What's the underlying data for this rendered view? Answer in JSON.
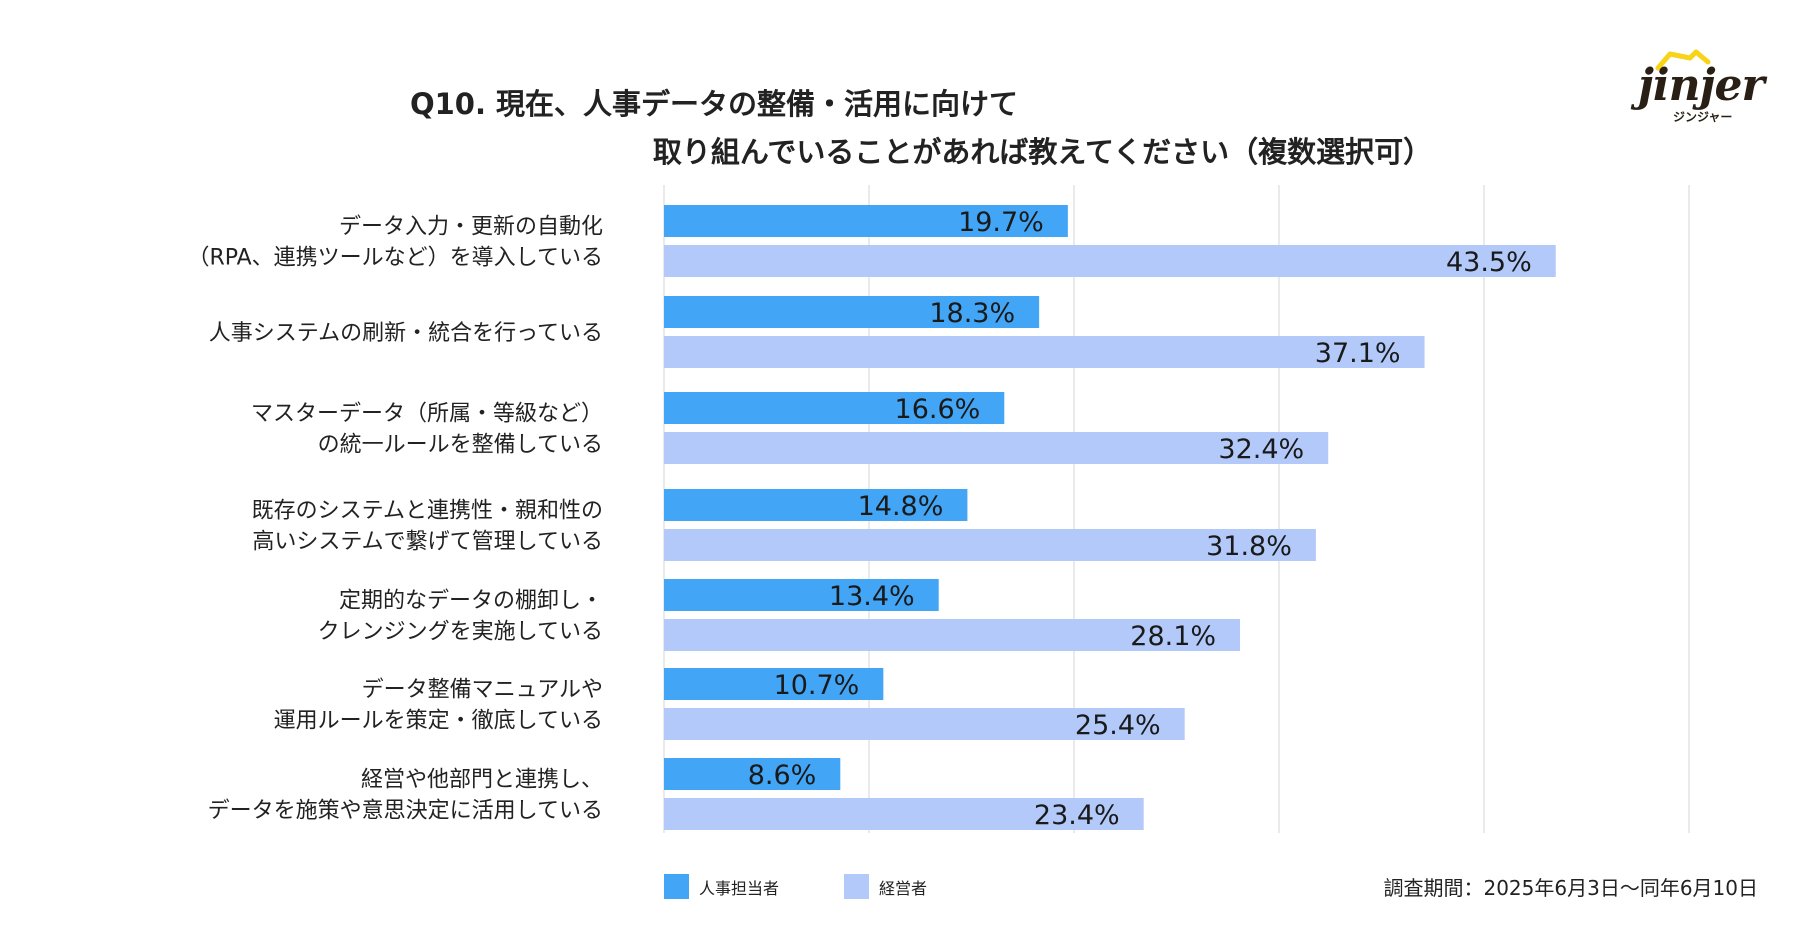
{
  "title_line1": "Q10. 現在、人事データの整備・活用に向けて",
  "title_line2": "取り組んでいることがあれば教えてください（複数選択可）",
  "logo": {
    "wordmark": "jinjer",
    "kana": "ジンジャー"
  },
  "period": "調査期間：2025年6月3日〜同年6月10日",
  "chart_data": {
    "type": "bar",
    "orientation": "horizontal",
    "categories": [
      [
        "データ入力・更新の自動化",
        "（RPA、連携ツールなど）を導入している"
      ],
      [
        "人事システムの刷新・統合を行っている"
      ],
      [
        "マスターデータ（所属・等級など）",
        "の統一ルールを整備している"
      ],
      [
        "既存のシステムと連携性・親和性の",
        "高いシステムで繋げて管理している"
      ],
      [
        "定期的なデータの棚卸し・",
        "クレンジングを実施している"
      ],
      [
        "データ整備マニュアルや",
        "運用ルールを策定・徹底している"
      ],
      [
        "経営や他部門と連携し、",
        "データを施策や意思決定に活用している"
      ]
    ],
    "series": [
      {
        "name": "人事担当者",
        "color": "#42a5f5",
        "values": [
          19.7,
          18.3,
          16.6,
          14.8,
          13.4,
          10.7,
          8.6
        ],
        "labels": [
          "19.7%",
          "18.3%",
          "16.6%",
          "14.8%",
          "13.4%",
          "10.7%",
          "8.6%"
        ]
      },
      {
        "name": "経営者",
        "color": "#b3c9fa",
        "values": [
          43.5,
          37.1,
          32.4,
          31.8,
          28.1,
          25.4,
          23.4
        ],
        "labels": [
          "43.5%",
          "37.1%",
          "32.4%",
          "31.8%",
          "28.1%",
          "25.4%",
          "23.4%"
        ]
      }
    ],
    "xlim": [
      0,
      50
    ],
    "grid": true,
    "legend_position": "bottom-left"
  }
}
